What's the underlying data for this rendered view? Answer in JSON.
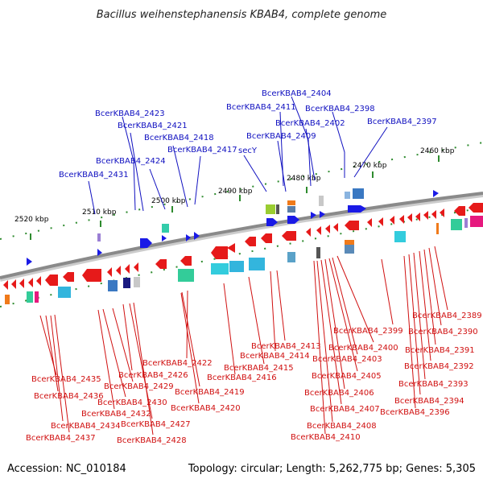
{
  "title": "Bacillus weihenstephanensis KBAB4, complete genome",
  "footer": {
    "accession": "Accession: NC_010184",
    "topology": "Topology: circular; Length: 5,262,775 bp; Genes: 5,305"
  },
  "ticks": [
    "2460 kbp",
    "2470 kbp",
    "2480 kbp",
    "2490 kbp",
    "2500 kbp",
    "2510 kbp",
    "2520 kbp"
  ],
  "top_labels": [
    "BcerKBAB4_2404",
    "BcerKBAB4_2411",
    "BcerKBAB4_2398",
    "BcerKBAB4_2423",
    "BcerKBAB4_2402",
    "BcerKBAB4_2397",
    "BcerKBAB4_2421",
    "BcerKBAB4_2409",
    "BcerKBAB4_2418",
    "BcerKBAB4_2417",
    "secY",
    "BcerKBAB4_2424",
    "BcerKBAB4_2431"
  ],
  "bottom_labels": [
    "BcerKBAB4_2389",
    "BcerKBAB4_2390",
    "BcerKBAB4_2399",
    "BcerKBAB4_2391",
    "BcerKBAB4_2413",
    "BcerKBAB4_2400",
    "BcerKBAB4_2414",
    "BcerKBAB4_2403",
    "BcerKBAB4_2392",
    "BcerKBAB4_2422",
    "BcerKBAB4_2415",
    "BcerKBAB4_2426",
    "BcerKBAB4_2405",
    "BcerKBAB4_2435",
    "BcerKBAB4_2416",
    "BcerKBAB4_2393",
    "BcerKBAB4_2429",
    "BcerKBAB4_2406",
    "BcerKBAB4_2419",
    "BcerKBAB4_2436",
    "BcerKBAB4_2394",
    "BcerKBAB4_2430",
    "BcerKBAB4_2420",
    "BcerKBAB4_2407",
    "BcerKBAB4_2396",
    "BcerKBAB4_2432",
    "BcerKBAB4_2427",
    "BcerKBAB4_2434",
    "BcerKBAB4_2408",
    "BcerKBAB4_2437",
    "BcerKBAB4_2428",
    "BcerKBAB4_2410"
  ],
  "colors": {
    "top_label": "#1010c0",
    "bottom_label": "#d01010",
    "backbone": "#8a8a8a",
    "tick_line": "#2e8b2e"
  }
}
